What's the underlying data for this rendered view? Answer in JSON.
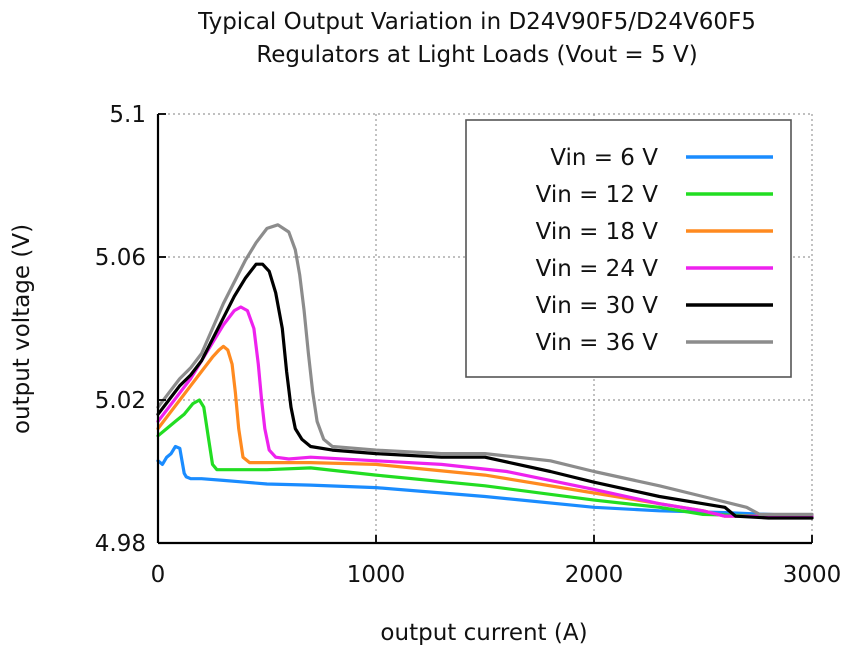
{
  "chart_data": {
    "type": "line",
    "title": [
      "Typical Output Variation in D24V90F5/D24V60F5",
      "Regulators at Light Loads (Vout = 5 V)"
    ],
    "xlabel": "output current (A)",
    "ylabel": "output voltage (V)",
    "xlim": [
      0,
      3000
    ],
    "ylim": [
      4.98,
      5.1
    ],
    "xticks": [
      0,
      1000,
      2000,
      3000
    ],
    "yticks": [
      4.98,
      5.02,
      5.06,
      5.1
    ],
    "ytick_labels": [
      "4.98",
      "5.02",
      "5.06",
      "5.1"
    ],
    "xtick_labels": [
      "0",
      "1000",
      "2000",
      "3000"
    ],
    "grid": true,
    "legend_position": "top-right",
    "series": [
      {
        "name": "Vin = 6 V",
        "color": "#1a8cff",
        "x": [
          0,
          20,
          40,
          60,
          80,
          100,
          110,
          120,
          130,
          150,
          200,
          300,
          400,
          500,
          700,
          1000,
          1500,
          2000,
          2300,
          2600,
          2800,
          3000
        ],
        "y": [
          5.003,
          5.002,
          5.004,
          5.005,
          5.007,
          5.0065,
          5.003,
          4.9995,
          4.9985,
          4.998,
          4.998,
          4.9975,
          4.997,
          4.9965,
          4.9962,
          4.9955,
          4.993,
          4.99,
          4.989,
          4.9885,
          4.988,
          4.9875
        ]
      },
      {
        "name": "Vin = 12 V",
        "color": "#22dd22",
        "x": [
          0,
          40,
          80,
          120,
          160,
          190,
          210,
          230,
          250,
          270,
          300,
          500,
          700,
          1000,
          1500,
          2000,
          2300,
          2500,
          2800,
          3000
        ],
        "y": [
          5.01,
          5.012,
          5.014,
          5.016,
          5.019,
          5.02,
          5.018,
          5.01,
          5.002,
          5.0005,
          5.0005,
          5.0005,
          5.001,
          4.999,
          4.996,
          4.992,
          4.99,
          4.988,
          4.9875,
          4.9875
        ]
      },
      {
        "name": "Vin = 18 V",
        "color": "#ff8a1f",
        "x": [
          0,
          50,
          100,
          150,
          200,
          250,
          280,
          300,
          320,
          340,
          355,
          370,
          390,
          420,
          500,
          700,
          1000,
          1500,
          2000,
          2300,
          2500,
          2600,
          2800,
          3000
        ],
        "y": [
          5.012,
          5.016,
          5.02,
          5.024,
          5.028,
          5.032,
          5.034,
          5.035,
          5.034,
          5.03,
          5.022,
          5.012,
          5.004,
          5.0025,
          5.0025,
          5.0025,
          5.002,
          4.999,
          4.994,
          4.991,
          4.989,
          4.9875,
          4.9875,
          4.9875
        ]
      },
      {
        "name": "Vin = 24 V",
        "color": "#ee22ee",
        "x": [
          0,
          50,
          100,
          150,
          200,
          250,
          300,
          350,
          380,
          410,
          440,
          460,
          475,
          490,
          510,
          540,
          600,
          700,
          1000,
          1300,
          1600,
          2000,
          2300,
          2500,
          2600,
          2800,
          3000
        ],
        "y": [
          5.014,
          5.018,
          5.022,
          5.026,
          5.031,
          5.036,
          5.041,
          5.045,
          5.046,
          5.045,
          5.04,
          5.03,
          5.02,
          5.012,
          5.006,
          5.004,
          5.0035,
          5.004,
          5.003,
          5.002,
          5.0,
          4.995,
          4.991,
          4.989,
          4.9875,
          4.9875,
          4.9875
        ]
      },
      {
        "name": "Vin = 30 V",
        "color": "#000000",
        "x": [
          0,
          50,
          100,
          150,
          200,
          250,
          300,
          350,
          400,
          450,
          480,
          510,
          540,
          570,
          590,
          610,
          630,
          660,
          700,
          800,
          1000,
          1300,
          1500,
          1800,
          2000,
          2300,
          2500,
          2600,
          2650,
          2800,
          3000
        ],
        "y": [
          5.016,
          5.02,
          5.024,
          5.027,
          5.031,
          5.037,
          5.043,
          5.049,
          5.054,
          5.058,
          5.058,
          5.056,
          5.05,
          5.04,
          5.028,
          5.018,
          5.012,
          5.009,
          5.007,
          5.006,
          5.005,
          5.004,
          5.004,
          5.0,
          4.997,
          4.993,
          4.991,
          4.99,
          4.9875,
          4.987,
          4.987
        ]
      },
      {
        "name": "Vin = 36 V",
        "color": "#8c8c8c",
        "x": [
          0,
          50,
          100,
          150,
          200,
          250,
          300,
          350,
          400,
          450,
          500,
          550,
          600,
          630,
          650,
          670,
          690,
          710,
          730,
          760,
          800,
          1000,
          1300,
          1500,
          1800,
          2000,
          2300,
          2500,
          2700,
          2760,
          2800,
          3000
        ],
        "y": [
          5.018,
          5.022,
          5.026,
          5.029,
          5.033,
          5.04,
          5.047,
          5.053,
          5.059,
          5.064,
          5.068,
          5.069,
          5.067,
          5.062,
          5.055,
          5.045,
          5.033,
          5.022,
          5.014,
          5.009,
          5.007,
          5.006,
          5.005,
          5.005,
          5.003,
          5.0,
          4.996,
          4.993,
          4.99,
          4.988,
          4.988,
          4.988
        ]
      }
    ]
  }
}
